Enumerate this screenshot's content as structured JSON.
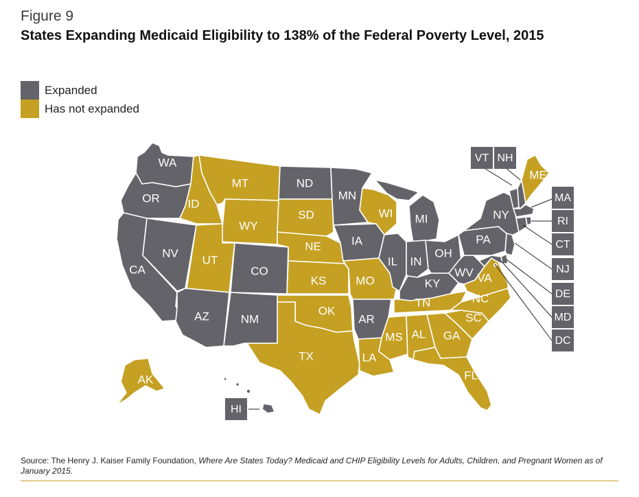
{
  "figure": {
    "label": "Figure 9",
    "title": "States Expanding Medicaid Eligibility to 138% of the Federal Poverty Level, 2015"
  },
  "legend": {
    "expanded": {
      "label": "Expanded",
      "color": "#636369"
    },
    "not_expanded": {
      "label": "Has not expanded",
      "color": "#c5a022"
    }
  },
  "states": {
    "WA": "expanded",
    "OR": "expanded",
    "CA": "expanded",
    "NV": "expanded",
    "AZ": "expanded",
    "CO": "expanded",
    "NM": "expanded",
    "ND": "expanded",
    "MN": "expanded",
    "IA": "expanded",
    "AR": "expanded",
    "IL": "expanded",
    "MI": "expanded",
    "IN": "expanded",
    "OH": "expanded",
    "KY": "expanded",
    "WV": "expanded",
    "PA": "expanded",
    "NY": "expanded",
    "NJ": "expanded",
    "DE": "expanded",
    "MD": "expanded",
    "DC": "expanded",
    "CT": "expanded",
    "RI": "expanded",
    "MA": "expanded",
    "VT": "expanded",
    "NH": "expanded",
    "HI": "expanded",
    "ID": "not_expanded",
    "MT": "not_expanded",
    "WY": "not_expanded",
    "UT": "not_expanded",
    "SD": "not_expanded",
    "NE": "not_expanded",
    "KS": "not_expanded",
    "OK": "not_expanded",
    "TX": "not_expanded",
    "MO": "not_expanded",
    "WI": "not_expanded",
    "LA": "not_expanded",
    "MS": "not_expanded",
    "AL": "not_expanded",
    "TN": "not_expanded",
    "GA": "not_expanded",
    "FL": "not_expanded",
    "SC": "not_expanded",
    "NC": "not_expanded",
    "VA": "not_expanded",
    "ME": "not_expanded",
    "AK": "not_expanded"
  },
  "source": {
    "prefix": "Source: The Henry J. Kaiser Family Foundation, ",
    "title": "Where Are States Today? Medicaid and CHIP Eligibility Levels for Adults, Children, and Pregnant Women as of January 2015."
  }
}
